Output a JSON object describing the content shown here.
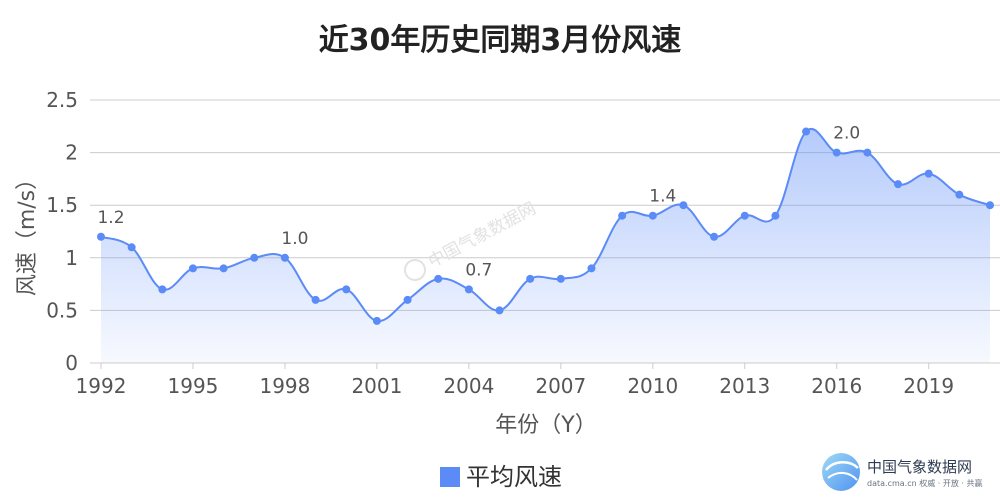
{
  "chart_data": {
    "type": "area",
    "title": "近30年历史同期3月份风速",
    "xlabel": "年份（Y）",
    "ylabel": "风速（m/s）",
    "x": [
      1992,
      1993,
      1994,
      1995,
      1996,
      1997,
      1998,
      1999,
      2000,
      2001,
      2002,
      2003,
      2004,
      2005,
      2006,
      2007,
      2008,
      2009,
      2010,
      2011,
      2012,
      2013,
      2014,
      2015,
      2016,
      2017,
      2018,
      2019,
      2020,
      2021
    ],
    "x_tick_labels": [
      "1992",
      "1995",
      "1998",
      "2001",
      "2004",
      "2007",
      "2010",
      "2013",
      "2016",
      "2019"
    ],
    "y_tick_labels": [
      "0",
      "0.5",
      "1",
      "1.5",
      "2",
      "2.5"
    ],
    "ylim": [
      0,
      2.5
    ],
    "grid": true,
    "legend_position": "bottom-center",
    "series": [
      {
        "name": "平均风速",
        "color": "#5b8bf7",
        "values": [
          1.2,
          1.1,
          0.7,
          0.9,
          0.9,
          1.0,
          1.0,
          0.6,
          0.7,
          0.4,
          0.6,
          0.8,
          0.7,
          0.5,
          0.8,
          0.8,
          0.9,
          1.4,
          1.4,
          1.5,
          1.2,
          1.4,
          1.4,
          2.2,
          2.0,
          2.0,
          1.7,
          1.8,
          1.6,
          1.5
        ]
      }
    ],
    "annotations": [
      {
        "x": 1992,
        "text": "1.2"
      },
      {
        "x": 1998,
        "text": "1.0"
      },
      {
        "x": 2004,
        "text": "0.7"
      },
      {
        "x": 2010,
        "text": "1.4"
      },
      {
        "x": 2016,
        "text": "2.0"
      }
    ]
  },
  "watermark": {
    "brand": "中国气象数据网",
    "url": "data.cma.cn 权威 · 开放 · 共赢"
  }
}
